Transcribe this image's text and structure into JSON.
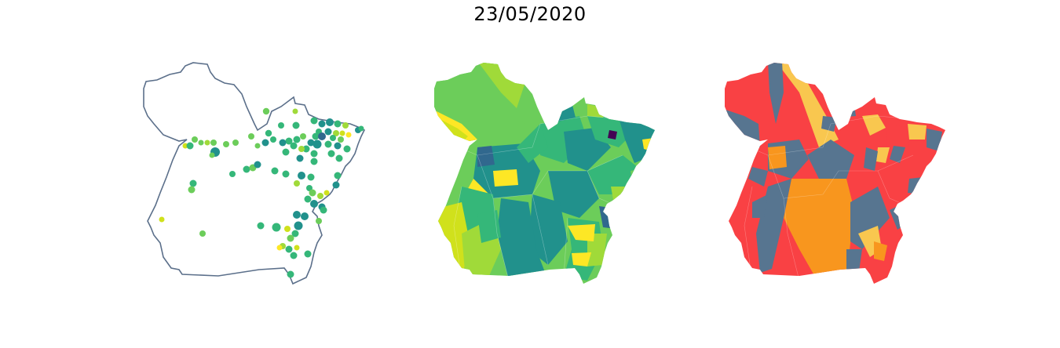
{
  "figure": {
    "title": "23/05/2020"
  },
  "colors": {
    "outline": "#5b6f8a",
    "viridis": [
      "#440154",
      "#31688e",
      "#21918c",
      "#35b779",
      "#6ccd5a",
      "#a0da39",
      "#d0e11c",
      "#fde725"
    ],
    "risk": [
      "#f94144",
      "#577590",
      "#f8961e",
      "#f9c74f"
    ]
  },
  "panels": [
    {
      "id": "points",
      "kind": "point-map"
    },
    {
      "id": "viridis-choropleth",
      "kind": "choropleth"
    },
    {
      "id": "risk-choropleth",
      "kind": "choropleth"
    }
  ]
}
